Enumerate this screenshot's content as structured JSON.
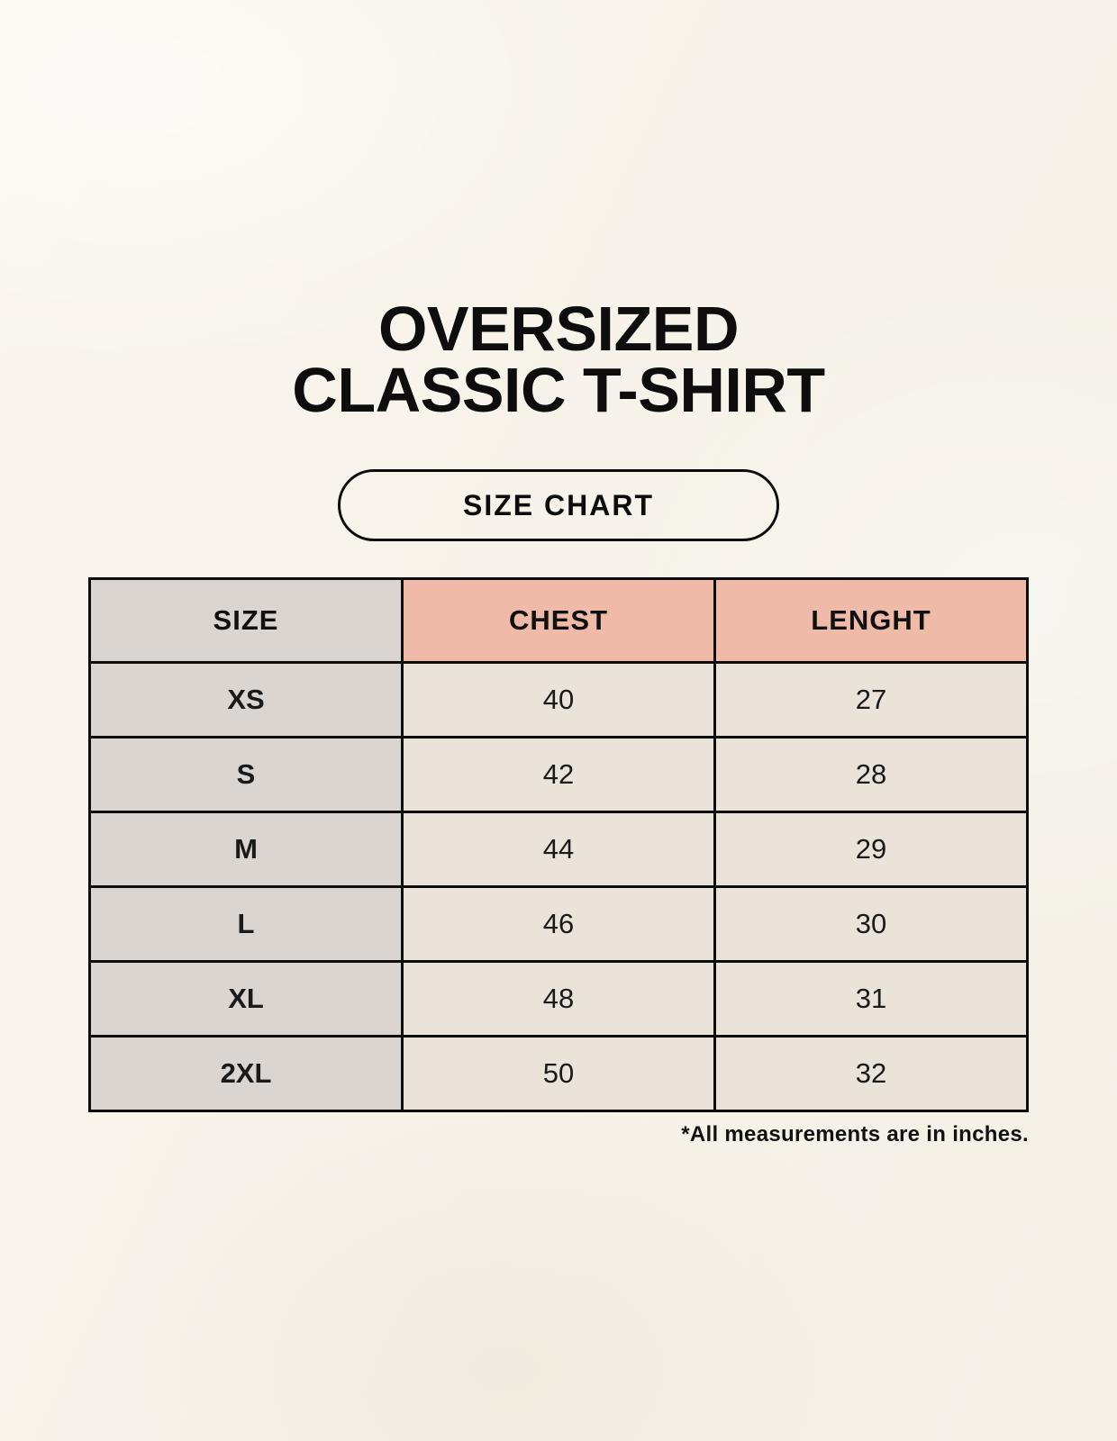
{
  "header": {
    "title_line1": "OVERSIZED",
    "title_line2": "CLASSIC T-SHIRT",
    "size_chart_badge": "SIZE CHART"
  },
  "chart_data": {
    "type": "table",
    "title": "OVERSIZED CLASSIC T-SHIRT SIZE CHART",
    "columns": [
      "SIZE",
      "CHEST",
      "LENGHT"
    ],
    "rows": [
      [
        "XS",
        "40",
        "27"
      ],
      [
        "S",
        "42",
        "28"
      ],
      [
        "M",
        "44",
        "29"
      ],
      [
        "L",
        "46",
        "30"
      ],
      [
        "XL",
        "48",
        "31"
      ],
      [
        "2XL",
        "50",
        "32"
      ]
    ],
    "note": "*All measurements are in inches.",
    "units": "inches"
  },
  "colors": {
    "background": "#f7f3ea",
    "header_size_bg": "#dbd5d1",
    "header_measure_bg": "#efbaa8",
    "row_size_bg": "#dbd5d1",
    "row_value_bg": "#e9e3d9",
    "border": "#0d0d0d"
  }
}
